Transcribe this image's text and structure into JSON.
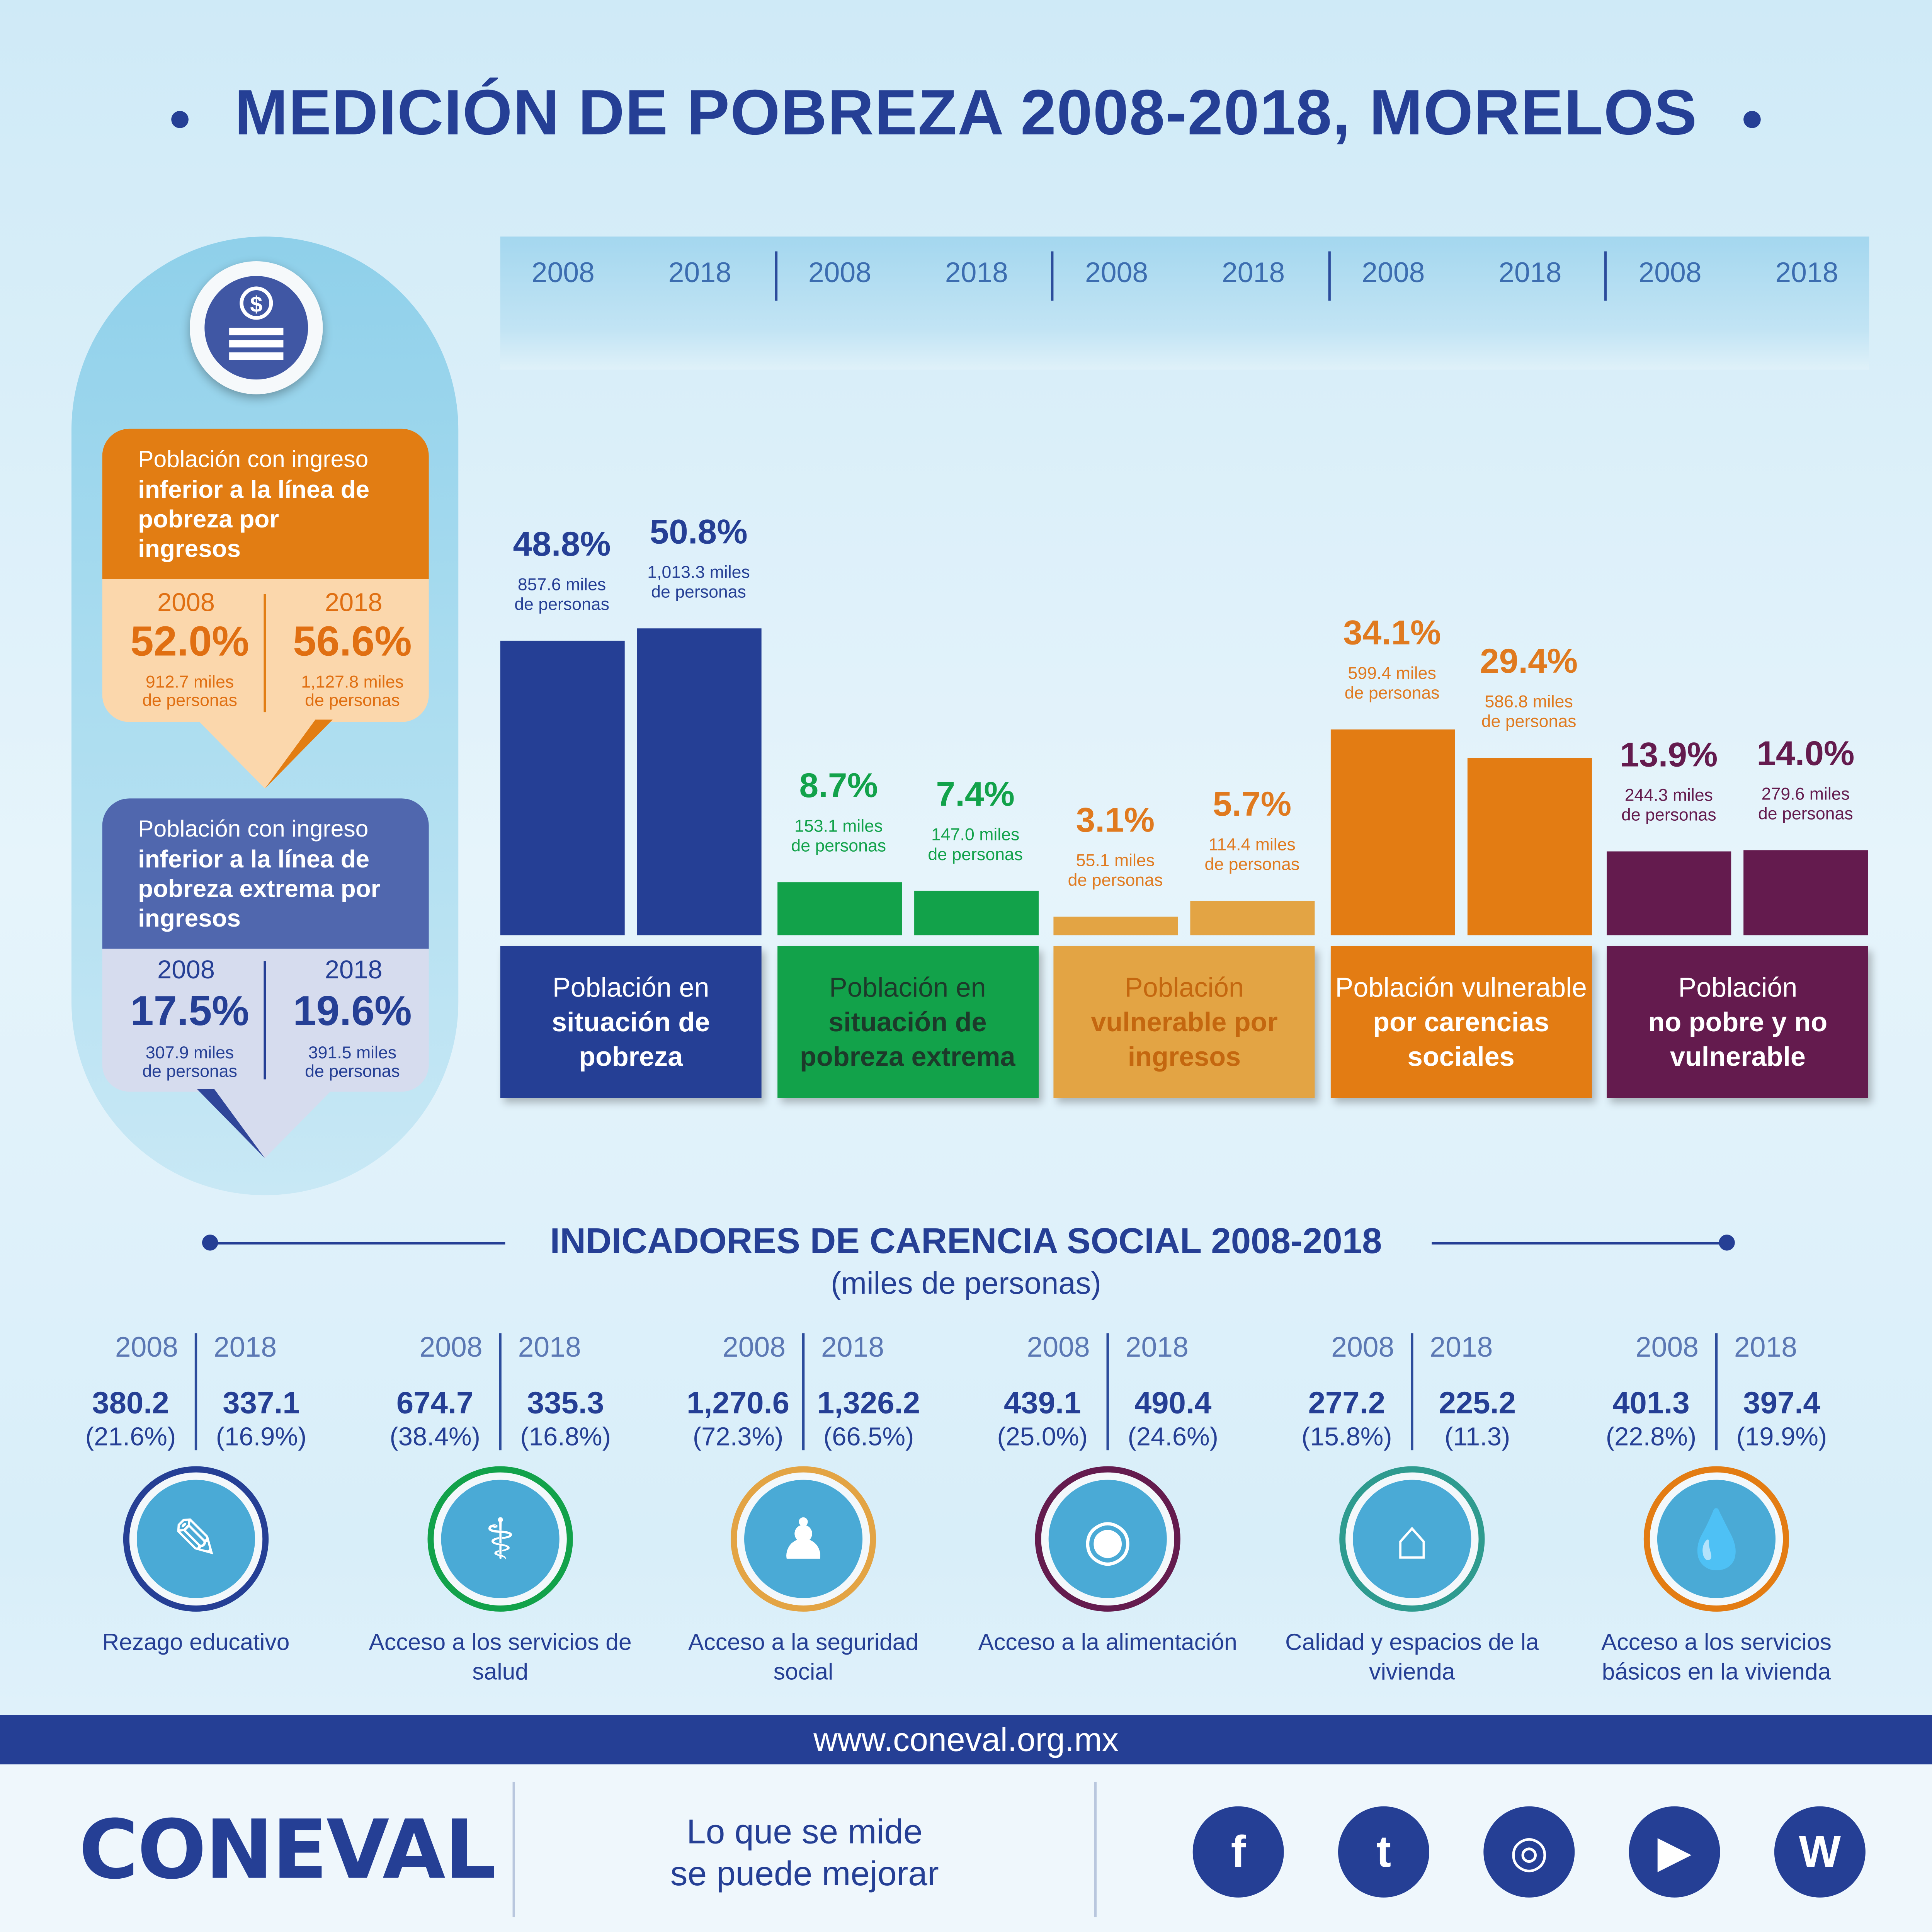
{
  "title": "MEDICIÓN DE POBREZA 2008-2018, MORELOS",
  "chart_data": {
    "type": "bar",
    "years": [
      "2008",
      "2018"
    ],
    "categories": [
      {
        "label_top": "Población en",
        "label_bold": "situación de pobreza",
        "color": "#253f95",
        "pct_color": "#253f95",
        "values": [
          48.8,
          50.8
        ],
        "pct_text": [
          "48.8%",
          "50.8%"
        ],
        "abs": [
          "857.6 miles",
          "1,013.3 miles"
        ]
      },
      {
        "label_top": "Población en",
        "label_bold": "situación de pobreza extrema",
        "color": "#12a24a",
        "pct_color": "#12a24a",
        "values": [
          8.7,
          7.4
        ],
        "pct_text": [
          "8.7%",
          "7.4%"
        ],
        "abs": [
          "153.1 miles",
          "147.0 miles"
        ]
      },
      {
        "label_top": "Población",
        "label_bold": "vulnerable por ingresos",
        "color": "#e3a444",
        "pct_color": "#e07a1f",
        "values": [
          3.1,
          5.7
        ],
        "pct_text": [
          "3.1%",
          "5.7%"
        ],
        "abs": [
          "55.1 miles",
          "114.4 miles"
        ]
      },
      {
        "label_top": "Población vulnerable",
        "label_bold": "por carencias sociales",
        "color": "#e37c13",
        "pct_color": "#e07a1f",
        "values": [
          34.1,
          29.4
        ],
        "pct_text": [
          "34.1%",
          "29.4%"
        ],
        "abs": [
          "599.4 miles",
          "586.8 miles"
        ]
      },
      {
        "label_top": "Población",
        "label_bold": "no pobre y no vulnerable",
        "color": "#641b4e",
        "pct_color": "#641b4e",
        "values": [
          13.9,
          14.0
        ],
        "pct_text": [
          "13.9%",
          "14.0%"
        ],
        "abs": [
          "244.3 miles",
          "279.6 miles"
        ]
      }
    ],
    "abs_suffix": "de personas"
  },
  "income": {
    "below_line": {
      "title_light": "Población con ingreso",
      "title_bold": "inferior a la línea de pobreza por ingresos",
      "years": [
        "2008",
        "2018"
      ],
      "pct": [
        "52.0%",
        "56.6%"
      ],
      "abs": [
        "912.7 miles",
        "1,127.8 miles"
      ],
      "abs_suffix": "de personas"
    },
    "below_extreme": {
      "title_light": "Población con ingreso",
      "title_bold": "inferior a la línea de pobreza extrema por ingresos",
      "years": [
        "2008",
        "2018"
      ],
      "pct": [
        "17.5%",
        "19.6%"
      ],
      "abs": [
        "307.9 miles",
        "391.5 miles"
      ],
      "abs_suffix": "de personas"
    }
  },
  "indicators": {
    "title": "INDICADORES DE CARENCIA SOCIAL 2008-2018",
    "subtitle": "(miles de personas)",
    "years": [
      "2008",
      "2018"
    ],
    "items": [
      {
        "label": "Rezago educativo",
        "v2008": "380.2",
        "v2018": "337.1",
        "p2008": "(21.6%)",
        "p2018": "(16.9%)",
        "ring": "#253f95",
        "icon": "pencil-icon"
      },
      {
        "label": "Acceso a los servicios de salud",
        "v2008": "674.7",
        "v2018": "335.3",
        "p2008": "(38.4%)",
        "p2018": "(16.8%)",
        "ring": "#12a24a",
        "icon": "doctor-icon"
      },
      {
        "label": "Acceso a la seguridad social",
        "v2008": "1,270.6",
        "v2018": "1,326.2",
        "p2008": "(72.3%)",
        "p2018": "(66.5%)",
        "ring": "#e3a444",
        "icon": "family-hands-icon"
      },
      {
        "label": "Acceso a la alimentación",
        "v2008": "439.1",
        "v2018": "490.4",
        "p2008": "(25.0%)",
        "p2018": "(24.6%)",
        "ring": "#641b4e",
        "icon": "plate-icon"
      },
      {
        "label": "Calidad y espacios de la vivienda",
        "v2008": "277.2",
        "v2018": "225.2",
        "p2008": "(15.8%)",
        "p2018": "(11.3)",
        "ring": "#2e9b8f",
        "icon": "house-hands-icon"
      },
      {
        "label": "Acceso a los servicios básicos en la vivienda",
        "v2008": "401.3",
        "v2018": "397.4",
        "p2008": "(22.8%)",
        "p2018": "(19.9%)",
        "ring": "#e37c13",
        "icon": "faucet-icon"
      }
    ]
  },
  "footer": {
    "url": "www.coneval.org.mx",
    "logo": "CONEVAL",
    "slogan_1": "Lo que se mide",
    "slogan_2": "se puede mejorar",
    "social": [
      {
        "icon": "facebook-icon",
        "glyph": "f"
      },
      {
        "icon": "twitter-icon",
        "glyph": "t"
      },
      {
        "icon": "instagram-icon",
        "glyph": "◎"
      },
      {
        "icon": "youtube-icon",
        "glyph": "▶"
      },
      {
        "icon": "wordpress-icon",
        "glyph": "W"
      }
    ]
  }
}
